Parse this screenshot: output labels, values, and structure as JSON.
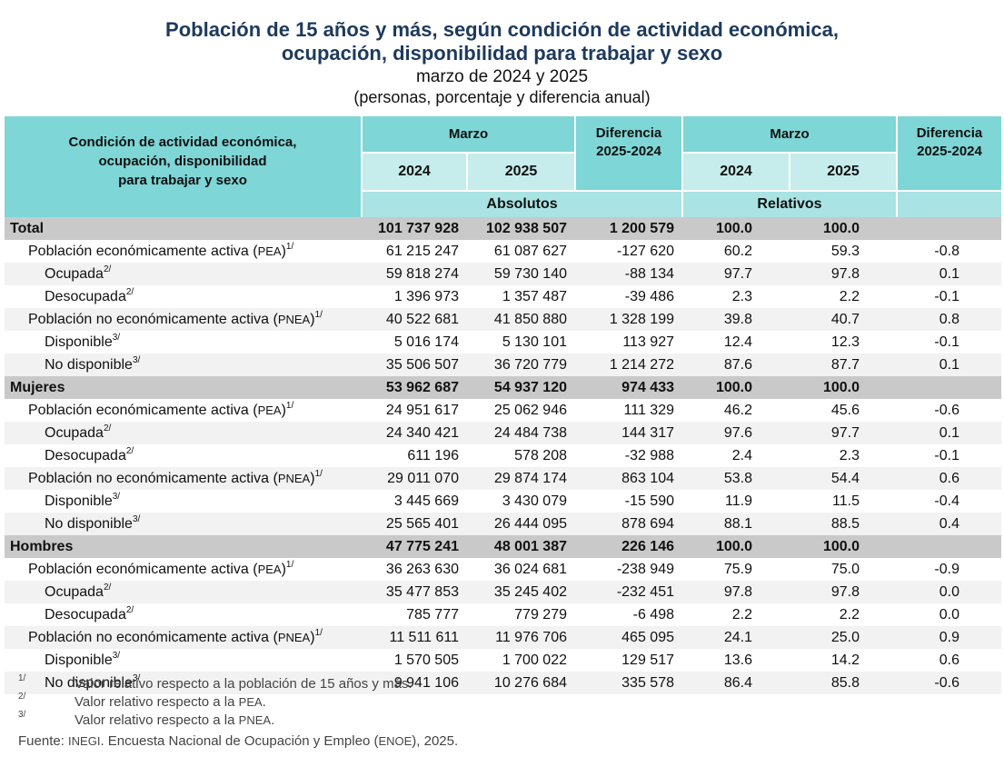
{
  "title": {
    "line1": "Población de 15 años y más, según condición de actividad económica,",
    "line2": "ocupación, disponibilidad para trabajar y sexo",
    "period": "marzo de 2024 y 2025",
    "units": "(personas, porcentaje y diferencia anual)"
  },
  "header": {
    "label": "Condición de actividad económica,\nocupación, disponibilidad\npara trabajar y sexo",
    "marzo": "Marzo",
    "y2024": "2024",
    "y2025": "2025",
    "diferencia": "Diferencia\n2025-2024",
    "absolutos": "Absolutos",
    "relativos": "Relativos"
  },
  "rows": [
    {
      "label": "Total",
      "sup": "",
      "level": 0,
      "type": "total",
      "a2024": "101 737 928",
      "a2025": "102 938 507",
      "adif": "1 200 579",
      "r2024": "100.0",
      "r2025": "100.0",
      "rdif": ""
    },
    {
      "label": "Población económicamente activa (",
      "abbr": "PEA",
      "close": ")",
      "sup": "1/",
      "level": 1,
      "type": "plain",
      "a2024": "61 215 247",
      "a2025": "61 087 627",
      "adif": "-127 620",
      "r2024": "60.2",
      "r2025": "59.3",
      "rdif": "-0.8"
    },
    {
      "label": "Ocupada",
      "sup": "2/",
      "level": 2,
      "type": "alt",
      "a2024": "59 818 274",
      "a2025": "59 730 140",
      "adif": "-88 134",
      "r2024": "97.7",
      "r2025": "97.8",
      "rdif": "0.1"
    },
    {
      "label": "Desocupada",
      "sup": "2/",
      "level": 2,
      "type": "plain",
      "a2024": "1 396 973",
      "a2025": "1 357 487",
      "adif": "-39 486",
      "r2024": "2.3",
      "r2025": "2.2",
      "rdif": "-0.1"
    },
    {
      "label": "Población no económicamente activa (",
      "abbr": "PNEA",
      "close": ")",
      "sup": "1/",
      "level": 1,
      "type": "alt",
      "a2024": "40 522 681",
      "a2025": "41 850 880",
      "adif": "1 328 199",
      "r2024": "39.8",
      "r2025": "40.7",
      "rdif": "0.8"
    },
    {
      "label": "Disponible",
      "sup": "3/",
      "level": 2,
      "type": "plain",
      "a2024": "5 016 174",
      "a2025": "5 130 101",
      "adif": "113 927",
      "r2024": "12.4",
      "r2025": "12.3",
      "rdif": "-0.1"
    },
    {
      "label": "No disponible",
      "sup": "3/",
      "level": 2,
      "type": "alt",
      "a2024": "35 506 507",
      "a2025": "36 720 779",
      "adif": "1 214 272",
      "r2024": "87.6",
      "r2025": "87.7",
      "rdif": "0.1"
    },
    {
      "label": "Mujeres",
      "sup": "",
      "level": 0,
      "type": "total",
      "a2024": "53 962 687",
      "a2025": "54 937 120",
      "adif": "974 433",
      "r2024": "100.0",
      "r2025": "100.0",
      "rdif": ""
    },
    {
      "label": "Población económicamente activa (",
      "abbr": "PEA",
      "close": ")",
      "sup": "1/",
      "level": 1,
      "type": "plain",
      "a2024": "24 951 617",
      "a2025": "25 062 946",
      "adif": "111 329",
      "r2024": "46.2",
      "r2025": "45.6",
      "rdif": "-0.6"
    },
    {
      "label": "Ocupada",
      "sup": "2/",
      "level": 2,
      "type": "alt",
      "a2024": "24 340 421",
      "a2025": "24 484 738",
      "adif": "144 317",
      "r2024": "97.6",
      "r2025": "97.7",
      "rdif": "0.1"
    },
    {
      "label": "Desocupada",
      "sup": "2/",
      "level": 2,
      "type": "plain",
      "a2024": "611 196",
      "a2025": "578 208",
      "adif": "-32 988",
      "r2024": "2.4",
      "r2025": "2.3",
      "rdif": "-0.1"
    },
    {
      "label": "Población no económicamente activa (",
      "abbr": "PNEA",
      "close": ")",
      "sup": "1/",
      "level": 1,
      "type": "alt",
      "a2024": "29 011 070",
      "a2025": "29 874 174",
      "adif": "863 104",
      "r2024": "53.8",
      "r2025": "54.4",
      "rdif": "0.6"
    },
    {
      "label": "Disponible",
      "sup": "3/",
      "level": 2,
      "type": "plain",
      "a2024": "3 445 669",
      "a2025": "3 430 079",
      "adif": "-15 590",
      "r2024": "11.9",
      "r2025": "11.5",
      "rdif": "-0.4"
    },
    {
      "label": "No disponible",
      "sup": "3/",
      "level": 2,
      "type": "alt",
      "a2024": "25 565 401",
      "a2025": "26 444 095",
      "adif": "878 694",
      "r2024": "88.1",
      "r2025": "88.5",
      "rdif": "0.4"
    },
    {
      "label": "Hombres",
      "sup": "",
      "level": 0,
      "type": "total",
      "a2024": "47 775 241",
      "a2025": "48 001 387",
      "adif": "226 146",
      "r2024": "100.0",
      "r2025": "100.0",
      "rdif": ""
    },
    {
      "label": "Población económicamente activa (",
      "abbr": "PEA",
      "close": ")",
      "sup": "1/",
      "level": 1,
      "type": "plain",
      "a2024": "36 263 630",
      "a2025": "36 024 681",
      "adif": "-238 949",
      "r2024": "75.9",
      "r2025": "75.0",
      "rdif": "-0.9"
    },
    {
      "label": "Ocupada",
      "sup": "2/",
      "level": 2,
      "type": "alt",
      "a2024": "35 477 853",
      "a2025": "35 245 402",
      "adif": "-232 451",
      "r2024": "97.8",
      "r2025": "97.8",
      "rdif": "0.0"
    },
    {
      "label": "Desocupada",
      "sup": "2/",
      "level": 2,
      "type": "plain",
      "a2024": "785 777",
      "a2025": "779 279",
      "adif": "-6 498",
      "r2024": "2.2",
      "r2025": "2.2",
      "rdif": "0.0"
    },
    {
      "label": "Población no económicamente activa (",
      "abbr": "PNEA",
      "close": ")",
      "sup": "1/",
      "level": 1,
      "type": "alt",
      "a2024": "11 511 611",
      "a2025": "11 976 706",
      "adif": "465 095",
      "r2024": "24.1",
      "r2025": "25.0",
      "rdif": "0.9"
    },
    {
      "label": "Disponible",
      "sup": "3/",
      "level": 2,
      "type": "plain",
      "a2024": "1 570 505",
      "a2025": "1 700 022",
      "adif": "129 517",
      "r2024": "13.6",
      "r2025": "14.2",
      "rdif": "0.6"
    },
    {
      "label": "No disponible",
      "sup": "3/",
      "level": 2,
      "type": "alt",
      "a2024": "9 941 106",
      "a2025": "10 276 684",
      "adif": "335 578",
      "r2024": "86.4",
      "r2025": "85.8",
      "rdif": "-0.6"
    }
  ],
  "notes": [
    {
      "mark": "1/",
      "text": "Valor relativo respecto a la población de 15 años y más.",
      "abbr": "",
      "end": ""
    },
    {
      "mark": "2/",
      "text": "Valor relativo respecto a la ",
      "abbr": "PEA",
      "end": "."
    },
    {
      "mark": "3/",
      "text": "Valor relativo respecto a la ",
      "abbr": "PNEA",
      "end": "."
    }
  ],
  "source": {
    "prefix": "Fuente: ",
    "abbr1": "INEGI",
    "middle": ". Encuesta Nacional de Ocupación y Empleo (",
    "abbr2": "ENOE",
    "suffix": "), 2025."
  },
  "colors": {
    "header": "#7ed6d6",
    "header_light": "#c6ecec",
    "total_row": "#c9c9c9",
    "alt_row": "#f2f2f2",
    "title": "#1d3a5c"
  }
}
